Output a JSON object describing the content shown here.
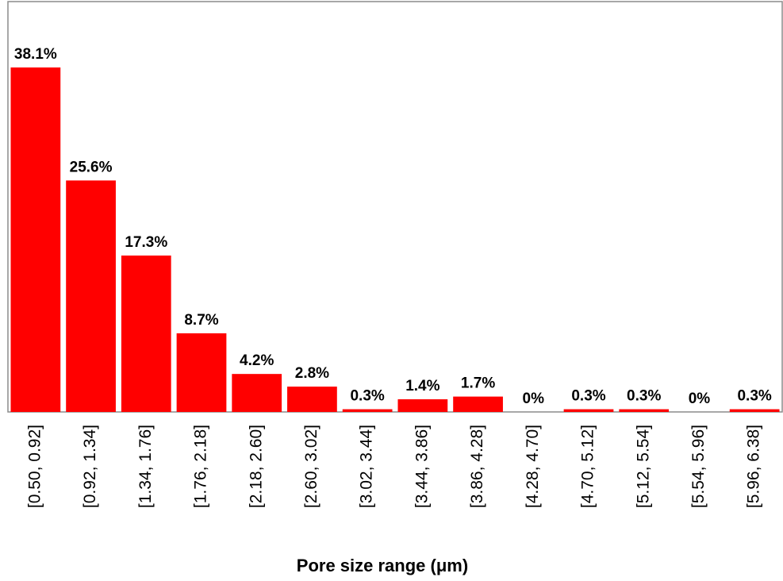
{
  "chart_data": {
    "type": "bar",
    "x_label": "Pore size range (μm)",
    "categories": [
      "[0.50, 0.92]",
      "[0.92, 1.34]",
      "[1.34, 1.76]",
      "[1.76, 2.18]",
      "[2.18, 2.60]",
      "[2.60, 3.02]",
      "[3.02, 3.44]",
      "[3.44, 3.86]",
      "[3.86, 4.28]",
      "[4.28, 4.70]",
      "[4.70, 5.12]",
      "[5.12, 5.54]",
      "[5.54, 5.96]",
      "[5.96, 6.38]"
    ],
    "values": [
      38.1,
      25.6,
      17.3,
      8.7,
      4.2,
      2.8,
      0.3,
      1.4,
      1.7,
      0,
      0.3,
      0.3,
      0,
      0.3
    ],
    "value_labels": [
      "38.1%",
      "25.6%",
      "17.3%",
      "8.7%",
      "4.2%",
      "2.8%",
      "0.3%",
      "1.4%",
      "1.7%",
      "0%",
      "0.3%",
      "0.3%",
      "0%",
      "0.3%"
    ],
    "color": "#ff0000"
  }
}
